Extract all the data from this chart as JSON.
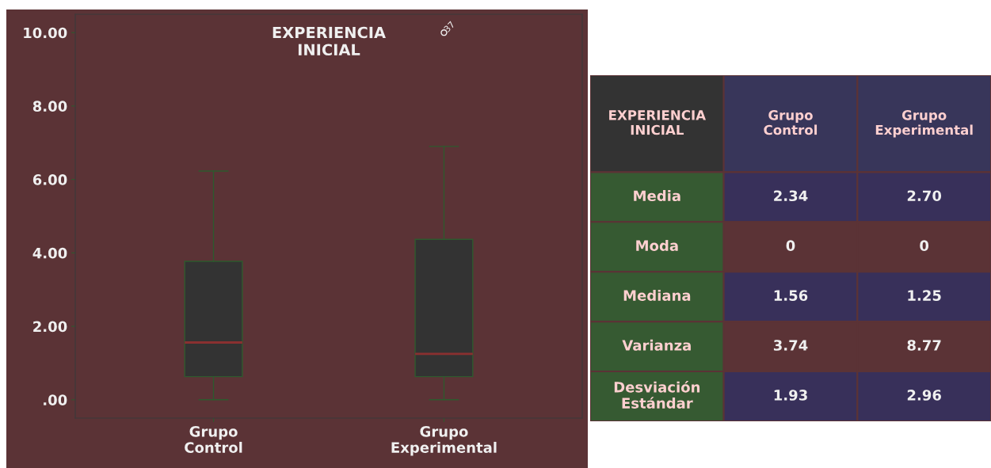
{
  "chart_data": [
    {
      "type": "box",
      "title": "EXPERIENCIA\nINICIAL",
      "categories": [
        "Grupo\nControl",
        "Grupo\nExperimental"
      ],
      "boxes": [
        {
          "low": 0,
          "q1": 0.63,
          "median": 1.56,
          "q3": 3.77,
          "high": 6.23
        },
        {
          "low": 0,
          "q1": 0.63,
          "median": 1.25,
          "q3": 4.37,
          "high": 6.9,
          "outliers": [
            10.0
          ]
        }
      ],
      "color": "#333333",
      "ylim": [
        -0.5,
        10.5
      ],
      "yticks": [
        {
          "value": 0,
          "label": ".00"
        },
        {
          "value": 2,
          "label": "2.00"
        },
        {
          "value": 4,
          "label": "4.00"
        },
        {
          "value": 6,
          "label": "6.00"
        },
        {
          "value": 8,
          "label": "8.00"
        },
        {
          "value": 10,
          "label": "10.00"
        }
      ],
      "annotations": [
        "37"
      ],
      "grid": false,
      "legend": false
    },
    {
      "type": "other",
      "title": "EXPERIENCIA\nINICIAL",
      "categories": [
        "Grupo\nControl",
        "Grupo\nExperimental"
      ],
      "y_categories": [
        "Media",
        "Moda",
        "Mediana",
        "Varianza",
        "Desviación\nEstándar"
      ],
      "cell_labels": [
        [
          "2.34",
          "2.70"
        ],
        [
          "0",
          "0"
        ],
        [
          "1.56",
          "1.25"
        ],
        [
          "3.74",
          "8.77"
        ],
        [
          "1.93",
          "2.96"
        ]
      ]
    }
  ]
}
